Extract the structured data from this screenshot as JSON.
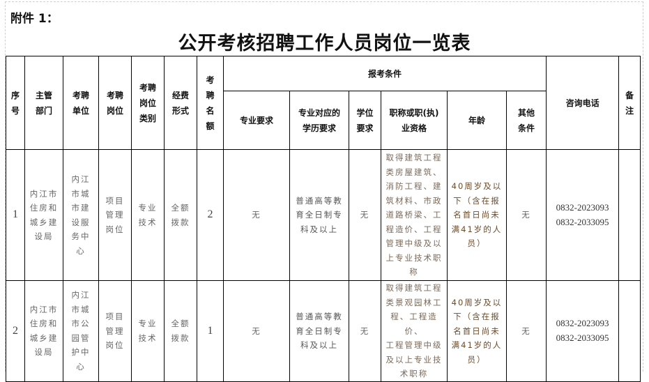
{
  "annex_label": "附件 1：",
  "title": "公开考核招聘工作人员岗位一览表",
  "headers": {
    "seq": "序\n号",
    "dept": "主管\n部门",
    "unit": "考聘\n单位",
    "post": "考聘\n岗位",
    "post_type": "考聘\n岗位\n类别",
    "funding": "经费\n形式",
    "quota": "考\n聘\n名\n额",
    "conditions": "报考条件",
    "major": "专业要求",
    "education": "专业对应的\n学历要求",
    "degree": "学位\n要求",
    "qualification": "职称或职(执)\n业资格",
    "age": "年龄",
    "other": "其他\n条件",
    "phone": "咨询电话",
    "remark": "备\n注"
  },
  "rows": [
    {
      "seq": "1",
      "dept": "内江市\n住房和\n城乡建\n设局",
      "unit": "内江\n市城\n市建\n设服\n务中\n心",
      "post": "项目\n管理\n岗位",
      "post_type": "专业\n技术",
      "funding": "全额\n拨款",
      "quota": "2",
      "major": "无",
      "education": "普通高等教\n育全日制专\n科及以上",
      "degree": "无",
      "qualification": "取得建筑工程\n类房屋建筑、\n消防工程、建\n筑材料、市政\n道路桥梁、工\n程造价、工程\n管理中级及以\n上专业技术职\n称",
      "age": "40周岁及以\n下（含在报\n名首日尚未\n满41岁的人\n员）",
      "other": "无",
      "phone": "0832-2023093\n0832-2033095",
      "remark": ""
    },
    {
      "seq": "2",
      "dept": "内江市\n住房和\n城乡建\n设局",
      "unit": "内江\n市城\n市公\n园管\n护中\n心",
      "post": "项目\n管理\n岗位",
      "post_type": "专业\n技术",
      "funding": "全额\n拨款",
      "quota": "1",
      "major": "无",
      "education": "普通高等教\n育全日制专\n科及以上",
      "degree": "无",
      "qualification": "取得建筑工程\n类景观园林工\n程、工程造价、\n工程管理中级\n及以上专业技\n术职称",
      "age": "40周岁及以\n下（含在报\n名首日尚未\n满41岁的人\n员）",
      "other": "无",
      "phone": "0832-2023093\n0832-2033095",
      "remark": ""
    }
  ]
}
